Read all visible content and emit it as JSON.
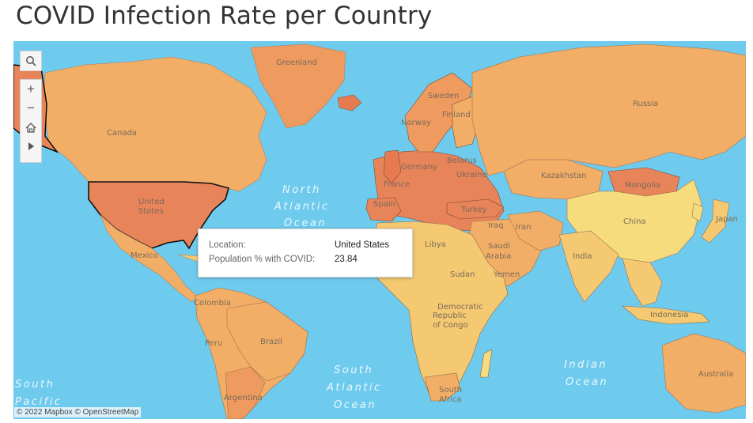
{
  "page": {
    "title": "COVID Infection Rate per Country"
  },
  "map": {
    "ocean_color": "#6fcbee",
    "ocean_labels": {
      "north_atlantic_1": "North",
      "north_atlantic_2": "Atlantic",
      "north_atlantic_3": "Ocean",
      "south_atlantic_1": "South",
      "south_atlantic_2": "Atlantic",
      "south_atlantic_3": "Ocean",
      "indian_1": "Indian",
      "indian_2": "Ocean",
      "south_pacific_1": "South",
      "south_pacific_2": "Pacific"
    },
    "country_labels": {
      "greenland": "Greenland",
      "russia": "Russia",
      "canada": "Canada",
      "united_states_1": "United",
      "united_states_2": "States",
      "mexico": "Mexico",
      "norway": "Norway",
      "sweden": "Sweden",
      "finland": "Finland",
      "ukraine": "Ukraine",
      "kazakhstan": "Kazakhstan",
      "mongolia": "Mongolia",
      "china": "China",
      "japan": "Japan",
      "turkey": "Turkey",
      "iran": "Iran",
      "iraq": "Iraq",
      "libya": "Libya",
      "saudi_arabia_1": "Saudi",
      "saudi_arabia_2": "Arabia",
      "india": "India",
      "yemen": "Yemen",
      "sudan": "Sudan",
      "dr_congo_1": "Democratic",
      "dr_congo_2": "Republic",
      "dr_congo_3": "of Congo",
      "south_africa_1": "South",
      "south_africa_2": "Africa",
      "indonesia": "Indonesia",
      "australia": "Australia",
      "colombia": "Colombia",
      "peru": "Peru",
      "brazil": "Brazil",
      "argentina": "Argentina",
      "germany": "Germany",
      "france": "France",
      "spain": "Spain",
      "belarus": "Belarus"
    },
    "legend_colors": {
      "high": "#e8845a",
      "mid": "#f2ae66",
      "low": "#f5c971",
      "lowest": "#f7dc7e"
    }
  },
  "controls": {
    "search_icon": "search-icon",
    "zoom_in": "+",
    "zoom_out": "−",
    "home_icon": "home-icon",
    "pan_icon": "play-arrow-icon"
  },
  "tooltip": {
    "location_label": "Location:",
    "location_value": "United States",
    "metric_label": "Population % with COVID:",
    "metric_value": "23.84"
  },
  "attribution": "© 2022 Mapbox  © OpenStreetMap"
}
